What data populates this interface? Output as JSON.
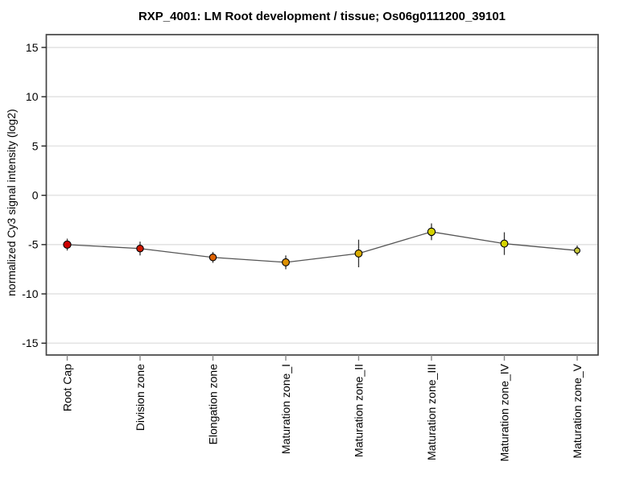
{
  "page": {
    "background": "#ffffff"
  },
  "chart_data": {
    "type": "line",
    "title": "RXP_4001: LM Root development / tissue; Os06g0111200_39101",
    "xlabel": "",
    "ylabel": "normalized Cy3 signal intensity (log2)",
    "categories": [
      "Root Cap",
      "Division zone",
      "Elongation zone",
      "Maturation zone_I",
      "Maturation zone_II",
      "Maturation zone_III",
      "Maturation zone_IV",
      "Maturation zone_V"
    ],
    "series": [
      {
        "name": "normalized Cy3 signal intensity",
        "values": [
          -5.0,
          -5.4,
          -6.3,
          -6.8,
          -5.9,
          -3.7,
          -4.9,
          -5.6
        ],
        "errors": [
          0.6,
          0.7,
          0.55,
          0.7,
          1.4,
          0.85,
          1.15,
          0.5
        ],
        "point_colors": [
          "#cc0000",
          "#d01800",
          "#dd6200",
          "#dd9000",
          "#d8ab00",
          "#d5d200",
          "#d8d600",
          "#c8c83a"
        ]
      }
    ],
    "ylim": [
      -16.2,
      16.3
    ],
    "yticks": [
      15,
      10,
      5,
      0,
      -5,
      -10,
      -15
    ],
    "grid": true,
    "legend": "none",
    "colors": {
      "line": "#555555",
      "error_bar": "#333333",
      "grid": "#e4e4e4",
      "frame": "#444444",
      "marker_outline": "#000000",
      "x_tick": "#888888",
      "y_tick": "#222222",
      "text": "#000000"
    }
  }
}
